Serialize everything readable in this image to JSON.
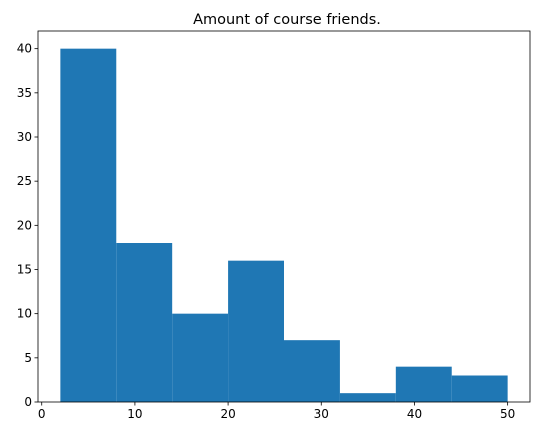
{
  "chart_data": {
    "type": "bar",
    "title": "Amount of course friends.",
    "xlabel": "",
    "ylabel": "",
    "bins": [
      {
        "x0": 2,
        "x1": 8,
        "value": 40
      },
      {
        "x0": 8,
        "x1": 14,
        "value": 18
      },
      {
        "x0": 14,
        "x1": 20,
        "value": 10
      },
      {
        "x0": 20,
        "x1": 26,
        "value": 16
      },
      {
        "x0": 26,
        "x1": 32,
        "value": 7
      },
      {
        "x0": 32,
        "x1": 38,
        "value": 1
      },
      {
        "x0": 38,
        "x1": 44,
        "value": 4
      },
      {
        "x0": 44,
        "x1": 50,
        "value": 3
      }
    ],
    "xlim": [
      -0.4,
      52.4
    ],
    "ylim": [
      0,
      42
    ],
    "xticks": [
      0,
      10,
      20,
      30,
      40,
      50
    ],
    "yticks": [
      0,
      5,
      10,
      15,
      20,
      25,
      30,
      35,
      40
    ],
    "bar_color": "#1f77b4",
    "grid": false,
    "legend": "none"
  }
}
